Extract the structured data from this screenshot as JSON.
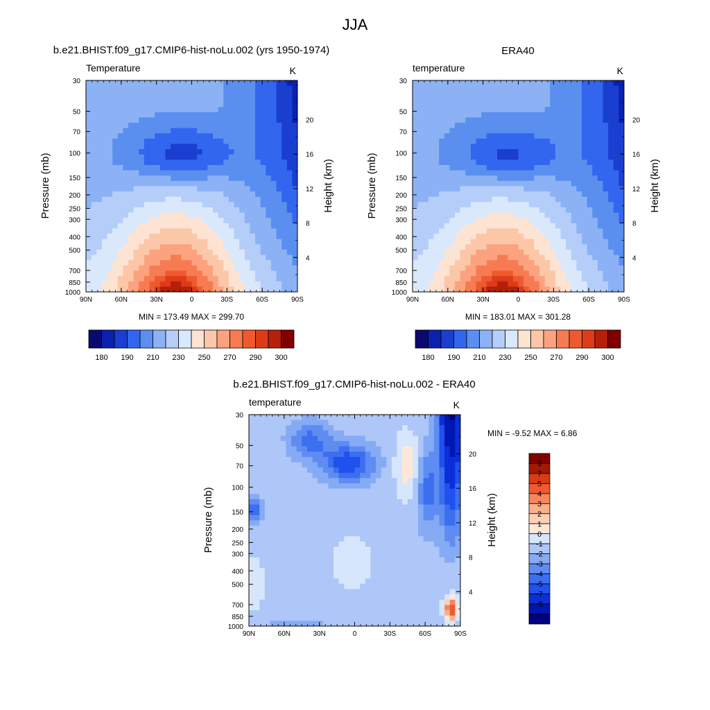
{
  "figure": {
    "title": "JJA"
  },
  "colors": {
    "temperature_scale": [
      "#0a0a6e",
      "#0a21b0",
      "#1a3fd0",
      "#3366ee",
      "#5a8ff0",
      "#8cb2f5",
      "#b5cef9",
      "#dae8fc",
      "#fde3d2",
      "#fcc6a8",
      "#fca27e",
      "#f77b52",
      "#ee5a30",
      "#de3c19",
      "#b5200b",
      "#800000"
    ],
    "difference_scale": [
      "#000080",
      "#0016b3",
      "#0a2fd8",
      "#2050ee",
      "#3c6ef0",
      "#5f8cf2",
      "#86abf5",
      "#aec6f8",
      "#d6e6fd",
      "#fde8d8",
      "#fcd0b4",
      "#fab08c",
      "#f6875c",
      "#ef5a32",
      "#d93c14",
      "#a01a05",
      "#800000"
    ]
  },
  "chart_data": [
    {
      "type": "heatmap",
      "id": "model",
      "title": "b.e21.BHIST.f09_g17.CMIP6-hist-noLu.002 (yrs 1950-1974)",
      "left_label": "Temperature",
      "units": "K",
      "ylabel": "Pressure (mb)",
      "y2label": "Height (km)",
      "x_ticks": [
        "90N",
        "60N",
        "30N",
        "0",
        "30S",
        "60S",
        "90S"
      ],
      "y_ticks": [
        30,
        50,
        70,
        100,
        150,
        200,
        250,
        300,
        400,
        500,
        700,
        850,
        1000
      ],
      "y2_ticks": [
        20,
        16,
        12,
        8,
        4
      ],
      "min": 173.49,
      "max": 299.7,
      "stats_text": "MIN = 173.49  MAX = 299.70",
      "colorbar_labels": [
        "180",
        "190",
        "210",
        "230",
        "250",
        "270",
        "290",
        "300"
      ]
    },
    {
      "type": "heatmap",
      "id": "obs",
      "title": "ERA40",
      "left_label": "temperature",
      "units": "K",
      "ylabel": "Pressure (mb)",
      "y2label": "Height (km)",
      "x_ticks": [
        "90N",
        "60N",
        "30N",
        "0",
        "30S",
        "60S",
        "90S"
      ],
      "y_ticks": [
        30,
        50,
        70,
        100,
        150,
        200,
        250,
        300,
        400,
        500,
        700,
        850,
        1000
      ],
      "y2_ticks": [
        20,
        16,
        12,
        8,
        4
      ],
      "min": 183.01,
      "max": 301.28,
      "stats_text": "MIN = 183.01  MAX = 301.28",
      "colorbar_labels": [
        "180",
        "190",
        "210",
        "230",
        "250",
        "270",
        "290",
        "300"
      ]
    },
    {
      "type": "heatmap",
      "id": "diff",
      "title": "b.e21.BHIST.f09_g17.CMIP6-hist-noLu.002 - ERA40",
      "left_label": "temperature",
      "units": "K",
      "ylabel": "Pressure (mb)",
      "y2label": "Height (km)",
      "x_ticks": [
        "90N",
        "60N",
        "30N",
        "0",
        "30S",
        "60S",
        "90S"
      ],
      "y_ticks": [
        30,
        50,
        70,
        100,
        150,
        200,
        250,
        300,
        400,
        500,
        700,
        850,
        1000
      ],
      "y2_ticks": [
        20,
        16,
        12,
        8,
        4
      ],
      "min": -9.52,
      "max": 6.86,
      "stats_text": "MIN =  -9.52  MAX =   6.86",
      "colorbar_labels": [
        "9",
        "7",
        "5",
        "4",
        "3",
        "2",
        "1",
        "0",
        "-1",
        "-2",
        "-3",
        "-4",
        "-5",
        "-7",
        "-9"
      ]
    }
  ]
}
